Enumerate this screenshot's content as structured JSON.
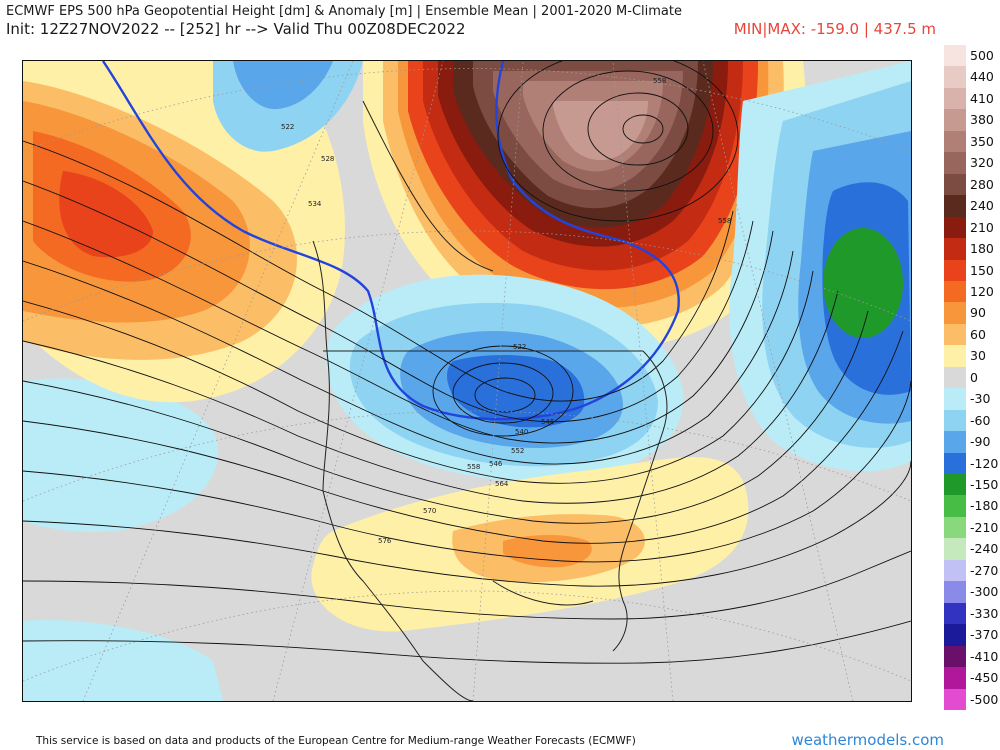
{
  "header": {
    "title": "ECMWF EPS 500 hPa Geopotential Height [dm] & Anomaly [m] | Ensemble Mean | 2001-2020 M-Climate",
    "subtitle": "Init: 12Z27NOV2022 -- [252] hr --> Valid Thu 00Z08DEC2022",
    "minmax": "MIN|MAX: -159.0 | 437.5 m"
  },
  "legend": [
    {
      "label": "500",
      "color": "#f7e4e0"
    },
    {
      "label": "440",
      "color": "#e8cbc5"
    },
    {
      "label": "410",
      "color": "#d9b3ab"
    },
    {
      "label": "380",
      "color": "#c79a91"
    },
    {
      "label": "350",
      "color": "#b07f76"
    },
    {
      "label": "320",
      "color": "#98665d"
    },
    {
      "label": "280",
      "color": "#7c4b42"
    },
    {
      "label": "240",
      "color": "#5a2a1f"
    },
    {
      "label": "210",
      "color": "#8a1c0f"
    },
    {
      "label": "180",
      "color": "#c42b13"
    },
    {
      "label": "150",
      "color": "#e8431a"
    },
    {
      "label": "120",
      "color": "#f46a22"
    },
    {
      "label": "90",
      "color": "#f8963c"
    },
    {
      "label": "60",
      "color": "#fbbe66"
    },
    {
      "label": "30",
      "color": "#fff0a8"
    },
    {
      "label": "0",
      "color": "#d9d9d9"
    },
    {
      "label": "-30",
      "color": "#b9ecf7"
    },
    {
      "label": "-60",
      "color": "#8fd3f3"
    },
    {
      "label": "-90",
      "color": "#5aa6ea"
    },
    {
      "label": "-120",
      "color": "#2a70db"
    },
    {
      "label": "-150",
      "color": "#1f9a2a"
    },
    {
      "label": "-180",
      "color": "#48bd46"
    },
    {
      "label": "-210",
      "color": "#8ad87e"
    },
    {
      "label": "-240",
      "color": "#c5e8bd"
    },
    {
      "label": "-270",
      "color": "#c1c1f5"
    },
    {
      "label": "-300",
      "color": "#8a8ae8"
    },
    {
      "label": "-330",
      "color": "#3333c2"
    },
    {
      "label": "-370",
      "color": "#1a1a9a"
    },
    {
      "label": "-410",
      "color": "#6a0f6a"
    },
    {
      "label": "-450",
      "color": "#b0179a"
    },
    {
      "label": "-500",
      "color": "#e34bd0"
    }
  ],
  "contour_labels": [
    "522",
    "528",
    "534",
    "540",
    "546",
    "552",
    "558",
    "564",
    "570",
    "576",
    "528",
    "534",
    "558",
    "522"
  ],
  "footer": {
    "text": "This service is based on data and products of the European Centre for Medium-range Weather Forecasts (ECMWF)",
    "brand": "weathermodels.com"
  }
}
